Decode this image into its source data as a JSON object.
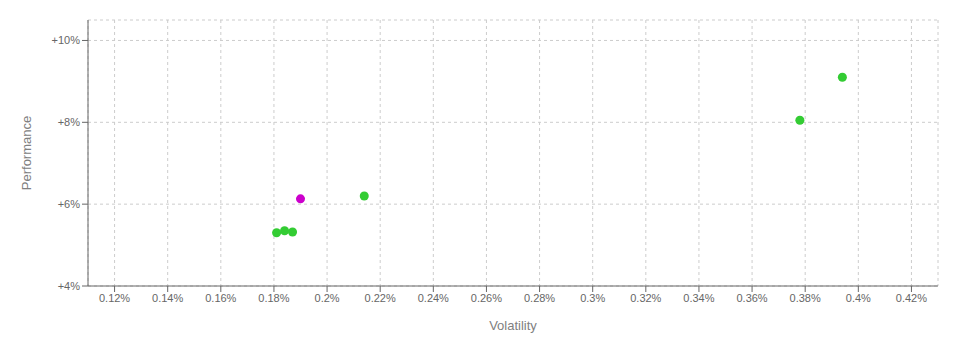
{
  "chart_data": {
    "type": "scatter",
    "xlabel": "Volatility",
    "ylabel": "Performance",
    "x": [
      0.181,
      0.184,
      0.187,
      0.19,
      0.214,
      0.378,
      0.394
    ],
    "values": [
      5.3,
      5.35,
      5.32,
      6.13,
      6.2,
      8.05,
      9.1
    ],
    "colors": [
      "#33cc33",
      "#33cc33",
      "#33cc33",
      "#cc00cc",
      "#33cc33",
      "#33cc33",
      "#33cc33"
    ],
    "xlim": [
      0.11,
      0.43
    ],
    "ylim": [
      4.0,
      10.5
    ],
    "xticks": [
      {
        "value": 0.12,
        "label": "0.12%"
      },
      {
        "value": 0.14,
        "label": "0.14%"
      },
      {
        "value": 0.16,
        "label": "0.16%"
      },
      {
        "value": 0.18,
        "label": "0.18%"
      },
      {
        "value": 0.2,
        "label": "0.2%"
      },
      {
        "value": 0.22,
        "label": "0.22%"
      },
      {
        "value": 0.24,
        "label": "0.24%"
      },
      {
        "value": 0.26,
        "label": "0.26%"
      },
      {
        "value": 0.28,
        "label": "0.28%"
      },
      {
        "value": 0.3,
        "label": "0.3%"
      },
      {
        "value": 0.32,
        "label": "0.32%"
      },
      {
        "value": 0.34,
        "label": "0.34%"
      },
      {
        "value": 0.36,
        "label": "0.36%"
      },
      {
        "value": 0.38,
        "label": "0.38%"
      },
      {
        "value": 0.4,
        "label": "0.4%"
      },
      {
        "value": 0.42,
        "label": "0.42%"
      }
    ],
    "yticks": [
      {
        "value": 4.0,
        "label": "+4%"
      },
      {
        "value": 6.0,
        "label": "+6%"
      },
      {
        "value": 8.0,
        "label": "+8%"
      },
      {
        "value": 10.0,
        "label": "+10%"
      }
    ],
    "grid": true
  }
}
